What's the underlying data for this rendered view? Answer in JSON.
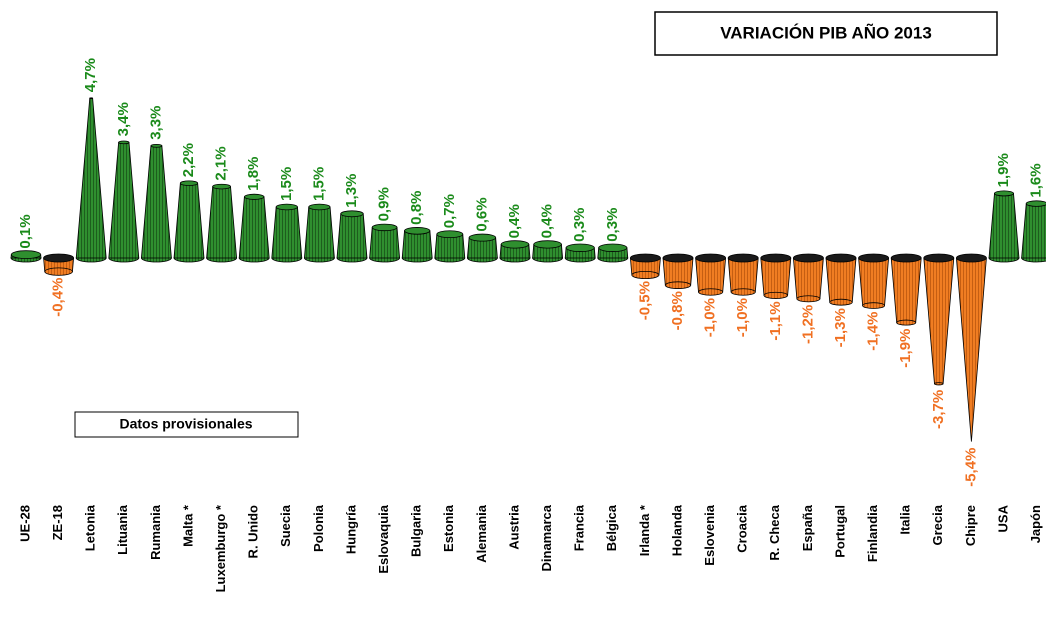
{
  "chart_data": {
    "type": "bar",
    "title": "VARIACIÓN PIB AÑO 2013",
    "annotation": "Datos provisionales",
    "categories": [
      "UE-28",
      "ZE-18",
      "Letonia",
      "Lituania",
      "Rumania",
      "Malta *",
      "Luxemburgo *",
      "R. Unido",
      "Suecia",
      "Polonia",
      "Hungría",
      "Eslovaquia",
      "Bulgaria",
      "Estonia",
      "Alemania",
      "Austria",
      "Dinamarca",
      "Francia",
      "Bélgica",
      "Irlanda *",
      "Holanda",
      "Eslovenia",
      "Croacia",
      "R. Checa",
      "España",
      "Portugal",
      "Finlandia",
      "Italia",
      "Grecia",
      "Chipre",
      "USA",
      "Japón"
    ],
    "values": [
      0.1,
      -0.4,
      4.7,
      3.4,
      3.3,
      2.2,
      2.1,
      1.8,
      1.5,
      1.5,
      1.3,
      0.9,
      0.8,
      0.7,
      0.6,
      0.4,
      0.4,
      0.3,
      0.3,
      -0.5,
      -0.8,
      -1.0,
      -1.0,
      -1.1,
      -1.2,
      -1.3,
      -1.4,
      -1.9,
      -3.7,
      -5.4,
      1.9,
      1.6
    ],
    "value_labels": [
      "0,1%",
      "-0,4%",
      "4,7%",
      "3,4%",
      "3,3%",
      "2,2%",
      "2,1%",
      "1,8%",
      "1,5%",
      "1,5%",
      "1,3%",
      "0,9%",
      "0,8%",
      "0,7%",
      "0,6%",
      "0,4%",
      "0,4%",
      "0,3%",
      "0,3%",
      "-0,5%",
      "-0,8%",
      "-1,0%",
      "-1,0%",
      "-1,1%",
      "-1,2%",
      "-1,3%",
      "-1,4%",
      "-1,9%",
      "-3,7%",
      "-5,4%",
      "1,9%",
      "1,6%"
    ],
    "color_positive": "#2f8f2f",
    "color_negative": "#f07d22",
    "label_color_positive": "#1a8a1a",
    "label_color_negative": "#f07022"
  }
}
